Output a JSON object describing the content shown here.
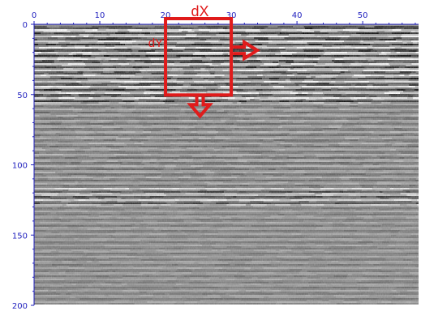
{
  "x_axis": {
    "ticks": [
      "0",
      "10",
      "20",
      "30",
      "40",
      "50"
    ],
    "values": [
      0,
      10,
      20,
      30,
      40,
      50
    ],
    "range": [
      0,
      58.5
    ]
  },
  "y_axis": {
    "ticks": [
      "0",
      "50",
      "100",
      "150",
      "200"
    ],
    "values": [
      0,
      50,
      100,
      150,
      200
    ],
    "range": [
      0,
      200
    ]
  },
  "annotation": {
    "dx_label": "dX",
    "dy_label": "dY",
    "box_x_range": [
      20,
      30
    ],
    "box_y_range": [
      0,
      48
    ],
    "color": "#e01b1b"
  },
  "colors": {
    "axis": "#1d1dbd",
    "background_gray": "#8c8c8c"
  }
}
